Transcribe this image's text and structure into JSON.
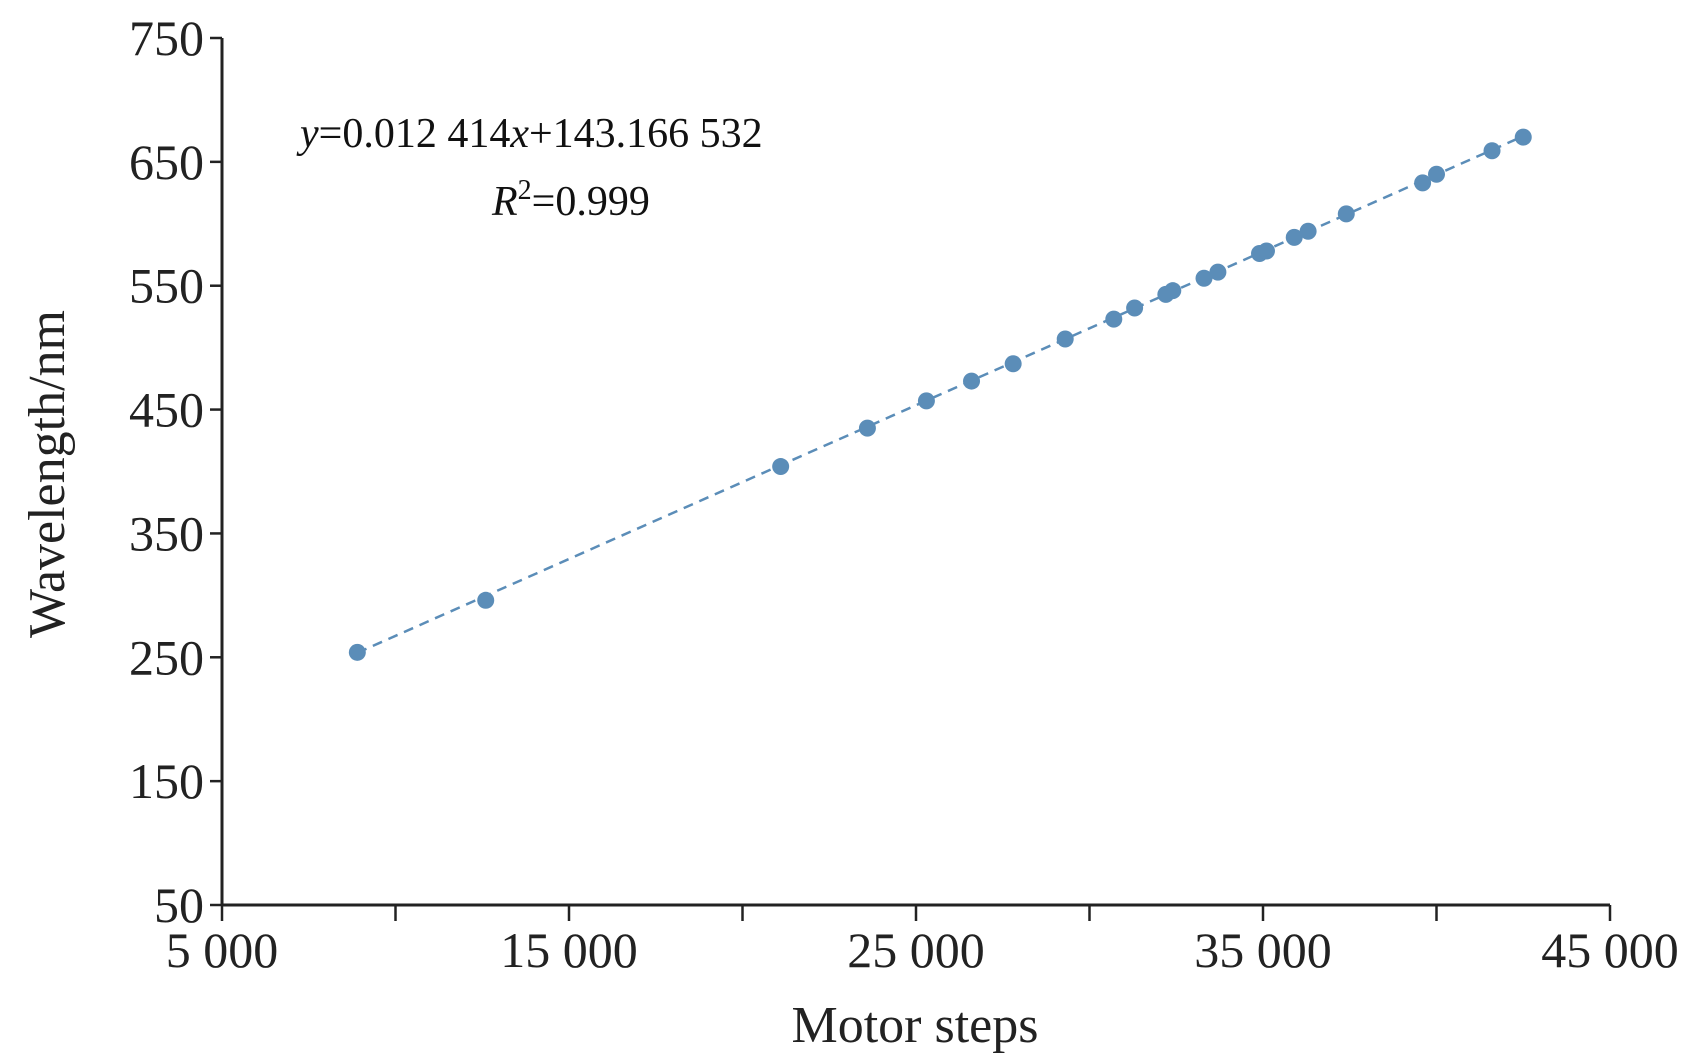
{
  "chart_data": {
    "type": "scatter",
    "xlabel": "Motor steps",
    "ylabel": "Wavelength/nm",
    "xlim": [
      5000,
      45000
    ],
    "ylim": [
      50,
      750
    ],
    "x_ticks": [
      5000,
      10000,
      15000,
      20000,
      25000,
      30000,
      35000,
      40000,
      45000
    ],
    "x_tick_labels": [
      "5 000",
      "",
      "15 000",
      "",
      "25 000",
      "",
      "35 000",
      "",
      "45 000"
    ],
    "y_ticks": [
      50,
      150,
      250,
      350,
      450,
      550,
      650,
      750
    ],
    "y_tick_labels": [
      "50",
      "150",
      "250",
      "350",
      "450",
      "550",
      "650",
      "750"
    ],
    "equation": {
      "y_var": "y",
      "eq_part1": "=0.012 414",
      "x_var": "x",
      "eq_part2": "+143.166 532",
      "r_var": "R",
      "r_sup": "2",
      "r_val": "=0.999"
    },
    "fit": {
      "slope": 0.012414,
      "intercept": 143.166532,
      "x_range": [
        8900,
        42500
      ]
    },
    "colors": {
      "points": "#5b8db8",
      "fit_line": "#5b8db8",
      "axis": "#222222"
    },
    "points": {
      "x": [
        8900,
        12600,
        21100,
        23600,
        25300,
        26600,
        27800,
        29300,
        30700,
        31300,
        32200,
        32400,
        33300,
        33700,
        34900,
        35100,
        35900,
        36300,
        37400,
        39600,
        40000,
        41600,
        42500
      ],
      "y": [
        254,
        296,
        404,
        435,
        457,
        473,
        487,
        507,
        523,
        532,
        543,
        546,
        556,
        561,
        576,
        578,
        589,
        594,
        608,
        633,
        640,
        659,
        670
      ]
    }
  }
}
